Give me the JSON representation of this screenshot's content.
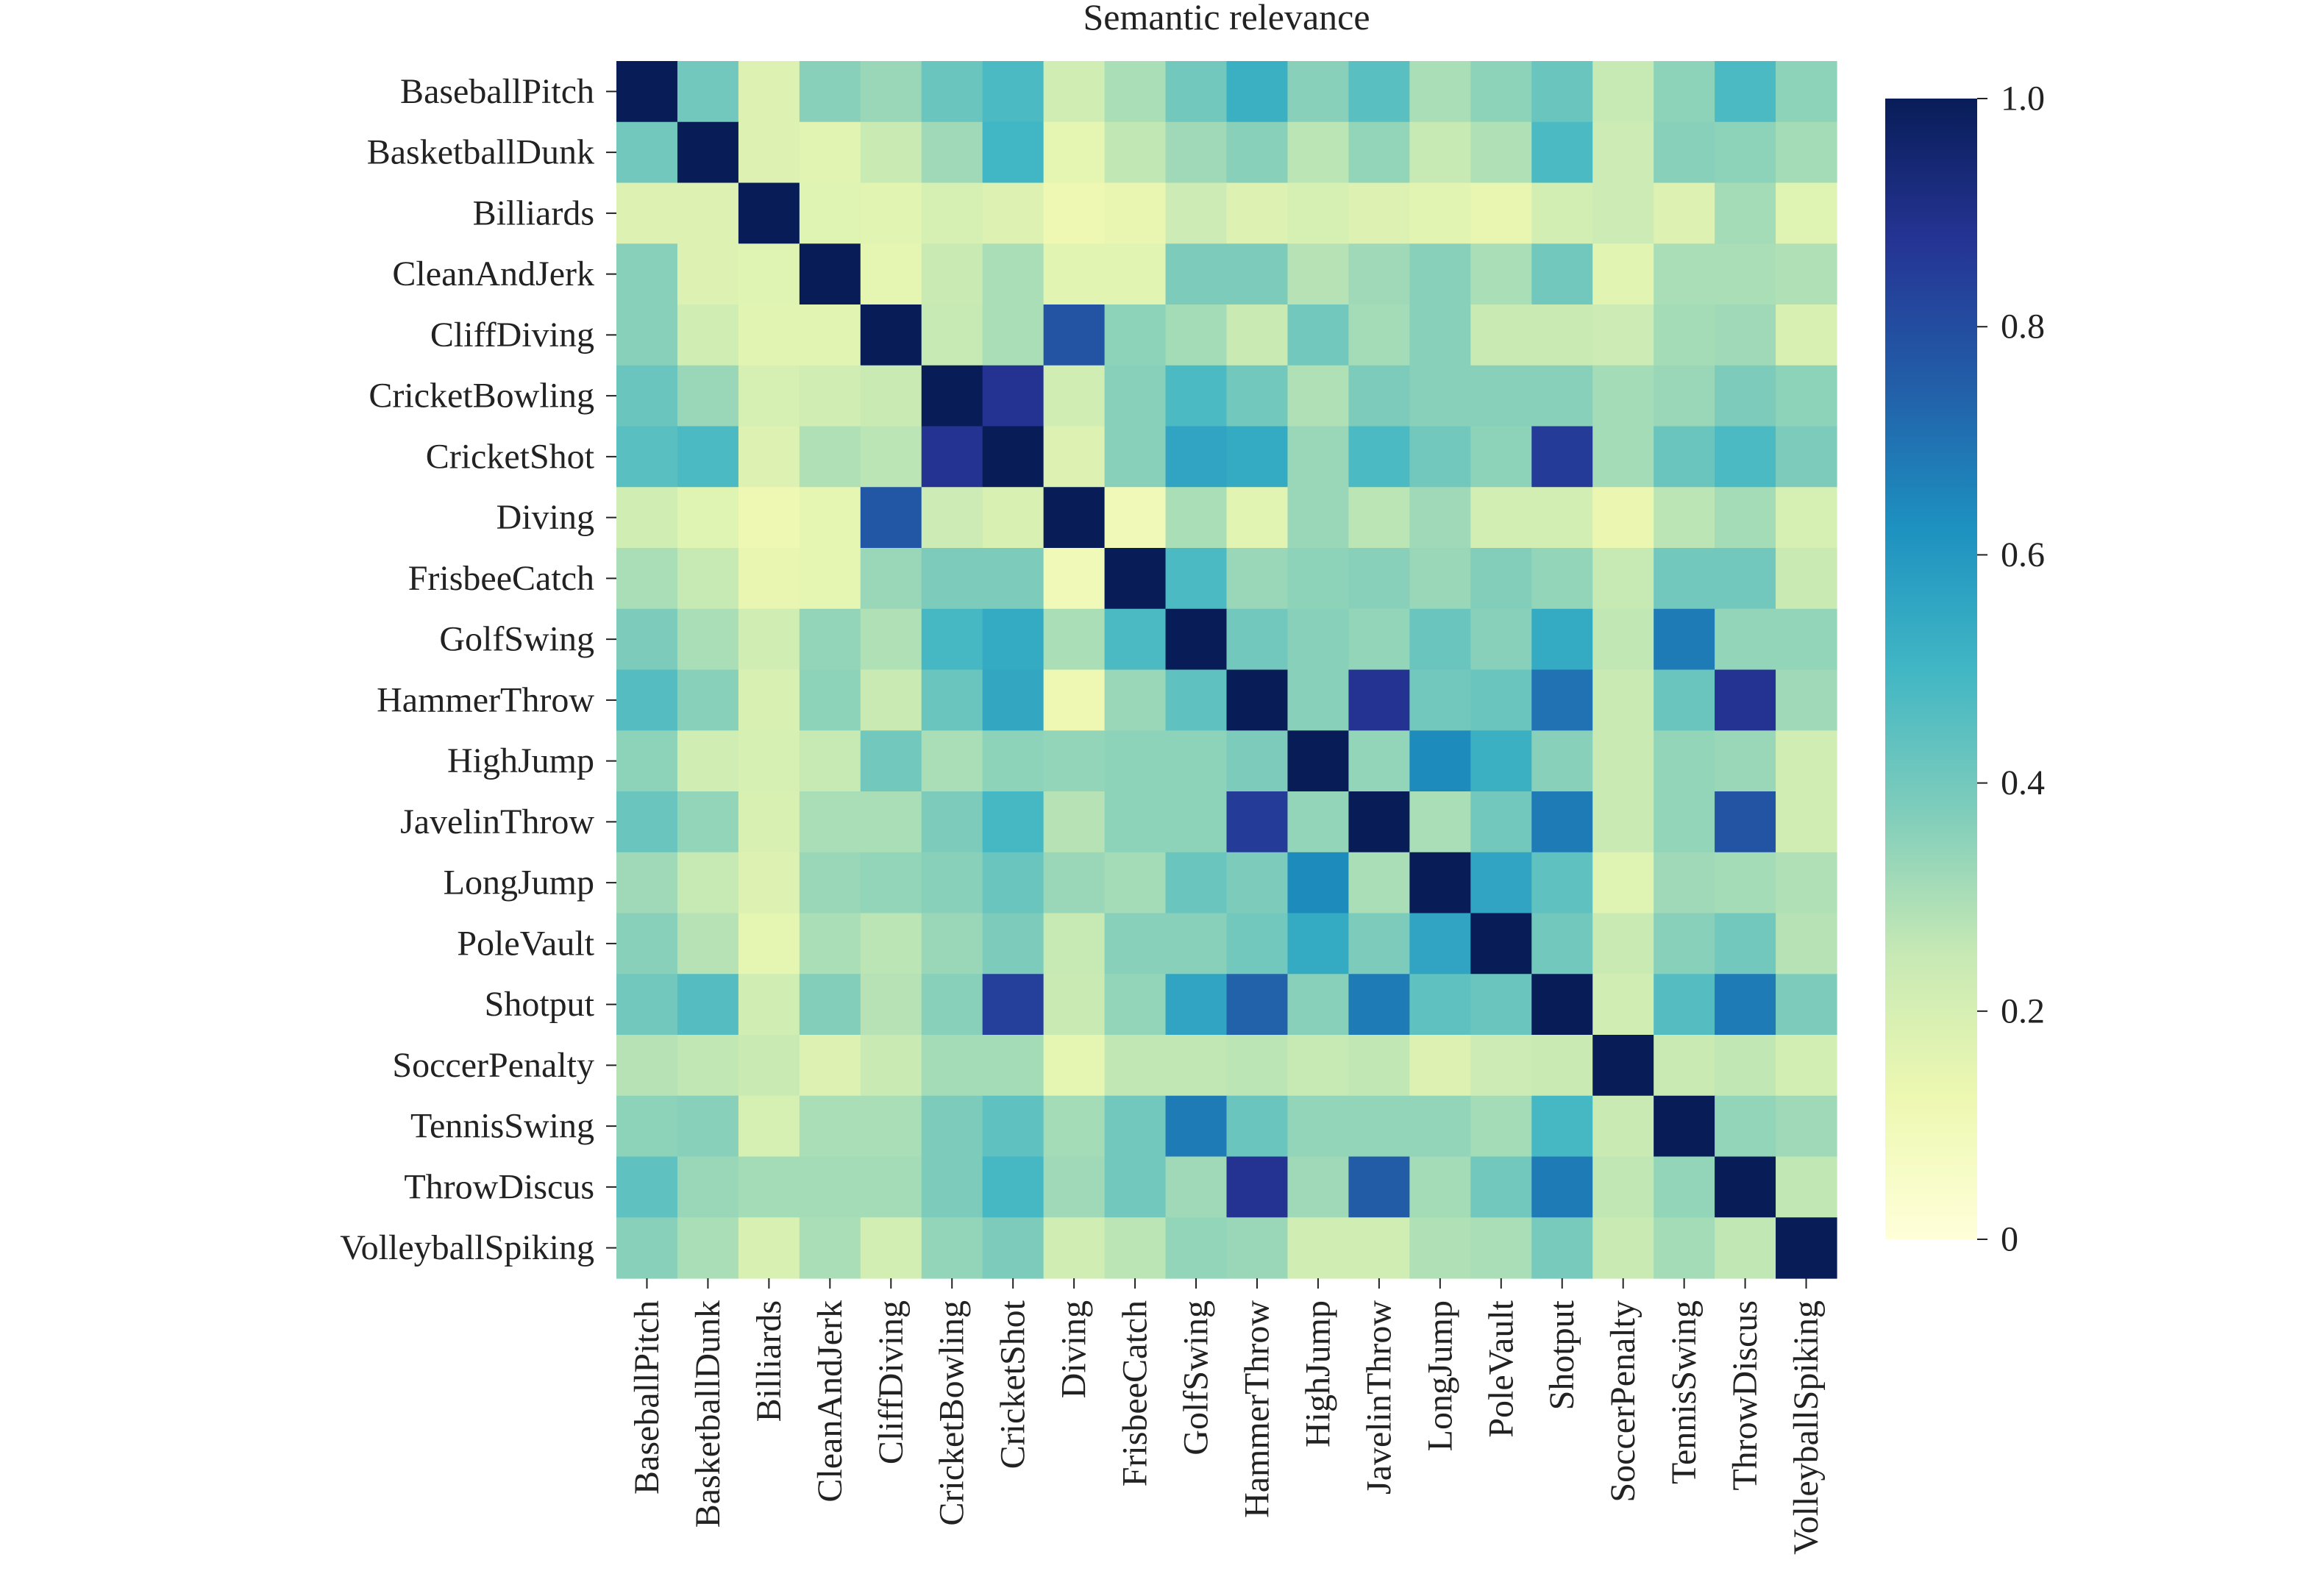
{
  "chart_data": {
    "type": "heatmap",
    "title": "Semantic relevance",
    "xlabel": "",
    "ylabel": "",
    "row_labels": [
      "BaseballPitch",
      "BasketballDunk",
      "Billiards",
      "CleanAndJerk",
      "CliffDiving",
      "CricketBowling",
      "CricketShot",
      "Diving",
      "FrisbeeCatch",
      "GolfSwing",
      "HammerThrow",
      "HighJump",
      "JavelinThrow",
      "LongJump",
      "PoleVault",
      "Shotput",
      "SoccerPenalty",
      "TennisSwing",
      "ThrowDiscus",
      "VolleyballSpiking"
    ],
    "col_labels": [
      "BaseballPitch",
      "BasketballDunk",
      "Billiards",
      "CleanAndJerk",
      "CliffDiving",
      "CricketBowling",
      "CricketShot",
      "Diving",
      "FrisbeeCatch",
      "GolfSwing",
      "HammerThrow",
      "HighJump",
      "JavelinThrow",
      "LongJump",
      "PoleVault",
      "Shotput",
      "SoccerPenalty",
      "TennisSwing",
      "ThrowDiscus",
      "VolleyballSpiking"
    ],
    "values": [
      [
        1.0,
        0.4,
        0.18,
        0.36,
        0.33,
        0.42,
        0.48,
        0.22,
        0.3,
        0.4,
        0.52,
        0.36,
        0.45,
        0.3,
        0.35,
        0.42,
        0.25,
        0.35,
        0.48,
        0.35
      ],
      [
        0.4,
        1.0,
        0.18,
        0.16,
        0.24,
        0.32,
        0.5,
        0.15,
        0.26,
        0.32,
        0.36,
        0.27,
        0.34,
        0.25,
        0.29,
        0.48,
        0.23,
        0.36,
        0.35,
        0.31
      ],
      [
        0.18,
        0.18,
        1.0,
        0.17,
        0.16,
        0.2,
        0.18,
        0.12,
        0.14,
        0.23,
        0.18,
        0.2,
        0.18,
        0.16,
        0.14,
        0.21,
        0.23,
        0.18,
        0.31,
        0.17
      ],
      [
        0.36,
        0.18,
        0.17,
        1.0,
        0.15,
        0.24,
        0.3,
        0.16,
        0.16,
        0.38,
        0.38,
        0.28,
        0.32,
        0.36,
        0.3,
        0.4,
        0.16,
        0.3,
        0.3,
        0.29
      ],
      [
        0.36,
        0.22,
        0.16,
        0.16,
        1.0,
        0.25,
        0.3,
        0.78,
        0.35,
        0.31,
        0.24,
        0.4,
        0.31,
        0.36,
        0.24,
        0.24,
        0.23,
        0.31,
        0.32,
        0.19
      ],
      [
        0.42,
        0.33,
        0.2,
        0.22,
        0.24,
        1.0,
        0.88,
        0.22,
        0.36,
        0.48,
        0.4,
        0.29,
        0.38,
        0.36,
        0.36,
        0.36,
        0.31,
        0.33,
        0.38,
        0.35
      ],
      [
        0.45,
        0.48,
        0.18,
        0.29,
        0.27,
        0.88,
        1.0,
        0.18,
        0.36,
        0.56,
        0.54,
        0.33,
        0.48,
        0.4,
        0.35,
        0.85,
        0.31,
        0.42,
        0.48,
        0.38
      ],
      [
        0.22,
        0.17,
        0.12,
        0.15,
        0.77,
        0.23,
        0.19,
        1.0,
        0.1,
        0.3,
        0.16,
        0.33,
        0.27,
        0.32,
        0.21,
        0.21,
        0.13,
        0.27,
        0.31,
        0.2
      ],
      [
        0.3,
        0.25,
        0.14,
        0.15,
        0.33,
        0.38,
        0.38,
        0.1,
        1.0,
        0.48,
        0.33,
        0.35,
        0.36,
        0.33,
        0.37,
        0.34,
        0.25,
        0.4,
        0.4,
        0.24
      ],
      [
        0.38,
        0.3,
        0.22,
        0.34,
        0.29,
        0.49,
        0.54,
        0.3,
        0.48,
        1.0,
        0.4,
        0.36,
        0.34,
        0.42,
        0.36,
        0.54,
        0.26,
        0.68,
        0.34,
        0.34
      ],
      [
        0.46,
        0.36,
        0.19,
        0.35,
        0.24,
        0.42,
        0.55,
        0.12,
        0.33,
        0.44,
        1.0,
        0.36,
        0.88,
        0.4,
        0.42,
        0.7,
        0.24,
        0.42,
        0.88,
        0.32
      ],
      [
        0.35,
        0.22,
        0.2,
        0.25,
        0.4,
        0.3,
        0.35,
        0.34,
        0.35,
        0.35,
        0.38,
        1.0,
        0.34,
        0.64,
        0.52,
        0.36,
        0.24,
        0.34,
        0.33,
        0.22
      ],
      [
        0.42,
        0.34,
        0.19,
        0.3,
        0.3,
        0.38,
        0.49,
        0.28,
        0.35,
        0.35,
        0.85,
        0.34,
        1.0,
        0.3,
        0.4,
        0.68,
        0.24,
        0.34,
        0.78,
        0.22
      ],
      [
        0.32,
        0.25,
        0.18,
        0.33,
        0.34,
        0.36,
        0.42,
        0.33,
        0.31,
        0.42,
        0.38,
        0.64,
        0.3,
        1.0,
        0.56,
        0.44,
        0.17,
        0.32,
        0.31,
        0.29
      ],
      [
        0.36,
        0.28,
        0.15,
        0.3,
        0.27,
        0.33,
        0.38,
        0.25,
        0.36,
        0.36,
        0.4,
        0.54,
        0.38,
        0.56,
        1.0,
        0.4,
        0.24,
        0.36,
        0.4,
        0.28
      ],
      [
        0.4,
        0.46,
        0.22,
        0.37,
        0.28,
        0.36,
        0.84,
        0.24,
        0.34,
        0.56,
        0.74,
        0.36,
        0.68,
        0.44,
        0.42,
        1.0,
        0.22,
        0.46,
        0.68,
        0.38
      ],
      [
        0.28,
        0.26,
        0.24,
        0.18,
        0.24,
        0.31,
        0.31,
        0.15,
        0.26,
        0.26,
        0.27,
        0.25,
        0.26,
        0.18,
        0.23,
        0.24,
        1.0,
        0.24,
        0.26,
        0.21
      ],
      [
        0.35,
        0.36,
        0.2,
        0.3,
        0.3,
        0.38,
        0.44,
        0.31,
        0.4,
        0.68,
        0.42,
        0.34,
        0.34,
        0.34,
        0.31,
        0.49,
        0.24,
        1.0,
        0.34,
        0.32
      ],
      [
        0.44,
        0.33,
        0.31,
        0.31,
        0.31,
        0.38,
        0.49,
        0.32,
        0.4,
        0.32,
        0.88,
        0.32,
        0.76,
        0.31,
        0.4,
        0.68,
        0.26,
        0.34,
        1.0,
        0.26
      ],
      [
        0.36,
        0.3,
        0.19,
        0.3,
        0.21,
        0.34,
        0.38,
        0.22,
        0.27,
        0.34,
        0.33,
        0.22,
        0.22,
        0.29,
        0.3,
        0.39,
        0.24,
        0.31,
        0.26,
        1.0
      ]
    ],
    "colorbar": {
      "range": [
        0,
        1
      ],
      "ticks": [
        0,
        0.2,
        0.4,
        0.6,
        0.8,
        1.0
      ],
      "tick_labels": [
        "0",
        "0.2",
        "0.4",
        "0.6",
        "0.8",
        "1.0"
      ],
      "colormap": "YlGnBu",
      "color_stops": [
        "#ffffd9",
        "#edf8b1",
        "#c7e9b4",
        "#7fcdbb",
        "#41b6c4",
        "#1d91c0",
        "#225ea8",
        "#253494",
        "#081d58"
      ]
    },
    "grid": false,
    "legend": "colorbar-right"
  }
}
